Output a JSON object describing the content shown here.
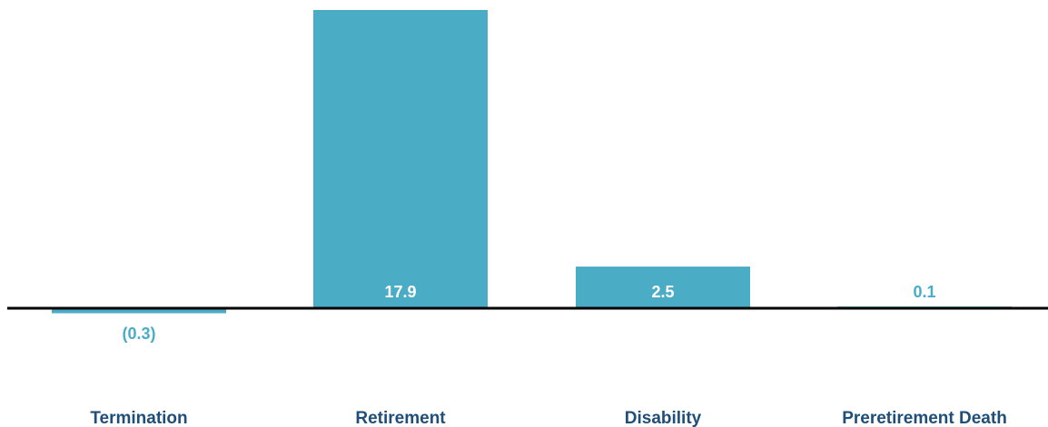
{
  "chart_data": {
    "type": "bar",
    "categories": [
      "Termination",
      "Retirement",
      "Disability",
      "Preretirement Death"
    ],
    "values": [
      -0.3,
      17.9,
      2.5,
      0.1
    ],
    "value_labels": [
      "(0.3)",
      "17.9",
      "2.5",
      "0.1"
    ],
    "title": "",
    "xlabel": "",
    "ylabel": "",
    "ylim": [
      -0.3,
      17.9
    ],
    "grid": false,
    "legend": "none"
  },
  "colors": {
    "bar": "#4BACC6",
    "axis": "#000000",
    "label_inside": "#FFFFFF",
    "label_outside": "#4BACC6",
    "category_text": "#1F4E79"
  }
}
